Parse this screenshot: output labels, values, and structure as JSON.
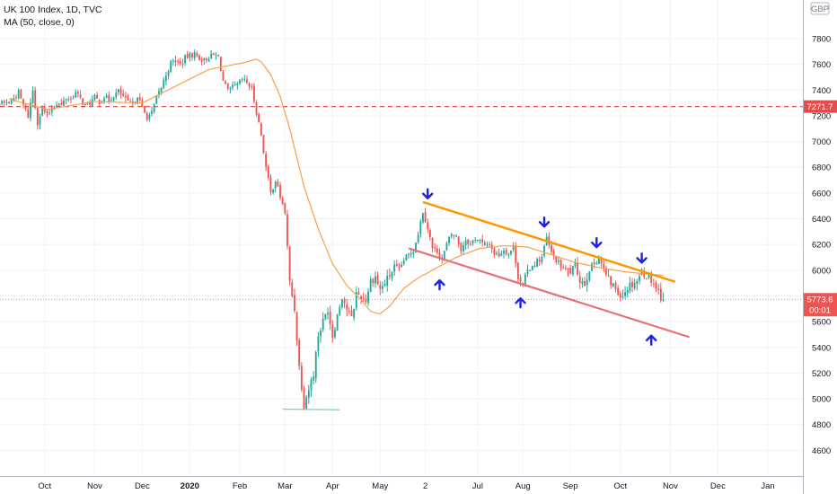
{
  "legend": {
    "title": "UK 100 Index, 1D, TVC",
    "ma": "MA (50, close, 0)"
  },
  "currency_badge": "GBP",
  "price_tags": {
    "resistance_level": "7271.7",
    "last_price": "5773.6",
    "countdown": "00:01"
  },
  "colors": {
    "up": "#26a69a",
    "down": "#ef5350",
    "ma": "#f7a04b",
    "upper_trend": "#ff9800",
    "lower_trend": "#e57373",
    "arrow": "#1e22e0",
    "support": "#80cbc4",
    "resistance_dash": "#e24d4d"
  },
  "chart_data": {
    "type": "candlestick",
    "symbol": "UK 100 Index",
    "interval": "1D",
    "source": "TVC",
    "ylim": [
      4400,
      8100
    ],
    "y_ticks": [
      4600,
      4800,
      5000,
      5200,
      5400,
      5600,
      5800,
      6000,
      6200,
      6400,
      6600,
      6800,
      7000,
      7200,
      7400,
      7600,
      7800
    ],
    "x_labels": [
      {
        "label": "Oct",
        "day": 29
      },
      {
        "label": "Nov",
        "day": 50
      },
      {
        "label": "Dec",
        "day": 70
      },
      {
        "label": "2020",
        "day": 90,
        "bold": true
      },
      {
        "label": "Feb",
        "day": 111
      },
      {
        "label": "Mar",
        "day": 130
      },
      {
        "label": "Apr",
        "day": 150
      },
      {
        "label": "May",
        "day": 170
      },
      {
        "label": "2",
        "day": 189
      },
      {
        "label": "Jul",
        "day": 211
      },
      {
        "label": "Aug",
        "day": 230
      },
      {
        "label": "Sep",
        "day": 250
      },
      {
        "label": "Oct",
        "day": 271
      },
      {
        "label": "Nov",
        "day": 292
      },
      {
        "label": "Dec",
        "day": 312
      },
      {
        "label": "Jan",
        "day": 333
      }
    ],
    "price_anchors": [
      [
        14,
        7300
      ],
      [
        16,
        7340
      ],
      [
        18,
        7380
      ],
      [
        20,
        7280
      ],
      [
        22,
        7200
      ],
      [
        24,
        7400
      ],
      [
        26,
        7150
      ],
      [
        28,
        7260
      ],
      [
        30,
        7200
      ],
      [
        32,
        7260
      ],
      [
        34,
        7300
      ],
      [
        36,
        7280
      ],
      [
        38,
        7340
      ],
      [
        40,
        7330
      ],
      [
        42,
        7380
      ],
      [
        44,
        7330
      ],
      [
        46,
        7280
      ],
      [
        48,
        7300
      ],
      [
        50,
        7340
      ],
      [
        52,
        7310
      ],
      [
        54,
        7350
      ],
      [
        56,
        7320
      ],
      [
        58,
        7360
      ],
      [
        60,
        7390
      ],
      [
        62,
        7350
      ],
      [
        64,
        7300
      ],
      [
        66,
        7290
      ],
      [
        68,
        7360
      ],
      [
        70,
        7260
      ],
      [
        72,
        7190
      ],
      [
        74,
        7220
      ],
      [
        76,
        7340
      ],
      [
        78,
        7420
      ],
      [
        80,
        7520
      ],
      [
        82,
        7610
      ],
      [
        84,
        7630
      ],
      [
        86,
        7600
      ],
      [
        88,
        7650
      ],
      [
        90,
        7670
      ],
      [
        92,
        7680
      ],
      [
        94,
        7650
      ],
      [
        96,
        7630
      ],
      [
        98,
        7660
      ],
      [
        100,
        7670
      ],
      [
        102,
        7660
      ],
      [
        104,
        7470
      ],
      [
        106,
        7390
      ],
      [
        108,
        7420
      ],
      [
        110,
        7440
      ],
      [
        112,
        7480
      ],
      [
        114,
        7460
      ],
      [
        116,
        7410
      ],
      [
        118,
        7230
      ],
      [
        120,
        7050
      ],
      [
        122,
        6800
      ],
      [
        124,
        6600
      ],
      [
        126,
        6700
      ],
      [
        128,
        6570
      ],
      [
        130,
        6450
      ],
      [
        132,
        5900
      ],
      [
        134,
        5700
      ],
      [
        136,
        5250
      ],
      [
        138,
        4960
      ],
      [
        140,
        5080
      ],
      [
        142,
        5200
      ],
      [
        144,
        5500
      ],
      [
        146,
        5600
      ],
      [
        148,
        5700
      ],
      [
        150,
        5490
      ],
      [
        152,
        5650
      ],
      [
        154,
        5800
      ],
      [
        156,
        5700
      ],
      [
        158,
        5620
      ],
      [
        160,
        5820
      ],
      [
        162,
        5800
      ],
      [
        164,
        5770
      ],
      [
        166,
        5920
      ],
      [
        168,
        5950
      ],
      [
        170,
        5850
      ],
      [
        172,
        5900
      ],
      [
        174,
        5960
      ],
      [
        176,
        6030
      ],
      [
        178,
        6000
      ],
      [
        180,
        6080
      ],
      [
        182,
        6120
      ],
      [
        184,
        6160
      ],
      [
        186,
        6290
      ],
      [
        188,
        6460
      ],
      [
        190,
        6330
      ],
      [
        192,
        6170
      ],
      [
        194,
        6150
      ],
      [
        196,
        6080
      ],
      [
        198,
        6200
      ],
      [
        200,
        6280
      ],
      [
        202,
        6260
      ],
      [
        204,
        6160
      ],
      [
        206,
        6240
      ],
      [
        208,
        6200
      ],
      [
        210,
        6250
      ],
      [
        212,
        6230
      ],
      [
        214,
        6180
      ],
      [
        216,
        6210
      ],
      [
        218,
        6130
      ],
      [
        220,
        6120
      ],
      [
        222,
        6160
      ],
      [
        224,
        6130
      ],
      [
        226,
        6180
      ],
      [
        228,
        5960
      ],
      [
        230,
        5880
      ],
      [
        232,
        5990
      ],
      [
        234,
        6040
      ],
      [
        236,
        6070
      ],
      [
        238,
        6100
      ],
      [
        240,
        6250
      ],
      [
        242,
        6130
      ],
      [
        244,
        6080
      ],
      [
        246,
        6030
      ],
      [
        248,
        6000
      ],
      [
        250,
        5990
      ],
      [
        252,
        6040
      ],
      [
        254,
        5930
      ],
      [
        256,
        5900
      ],
      [
        258,
        6010
      ],
      [
        260,
        6050
      ],
      [
        262,
        6100
      ],
      [
        264,
        6000
      ],
      [
        266,
        5920
      ],
      [
        268,
        5880
      ],
      [
        270,
        5830
      ],
      [
        272,
        5810
      ],
      [
        274,
        5870
      ],
      [
        276,
        5900
      ],
      [
        278,
        5920
      ],
      [
        280,
        5990
      ],
      [
        282,
        5960
      ],
      [
        284,
        5930
      ],
      [
        286,
        5870
      ],
      [
        288,
        5800
      ],
      [
        289,
        5773.6
      ]
    ],
    "ma_anchors": [
      [
        14,
        7330
      ],
      [
        30,
        7250
      ],
      [
        50,
        7310
      ],
      [
        70,
        7300
      ],
      [
        84,
        7430
      ],
      [
        98,
        7560
      ],
      [
        112,
        7610
      ],
      [
        118,
        7640
      ],
      [
        120,
        7620
      ],
      [
        124,
        7520
      ],
      [
        128,
        7350
      ],
      [
        132,
        7100
      ],
      [
        138,
        6650
      ],
      [
        144,
        6320
      ],
      [
        150,
        6050
      ],
      [
        156,
        5880
      ],
      [
        162,
        5770
      ],
      [
        166,
        5680
      ],
      [
        170,
        5660
      ],
      [
        174,
        5720
      ],
      [
        180,
        5860
      ],
      [
        186,
        5940
      ],
      [
        194,
        6020
      ],
      [
        202,
        6100
      ],
      [
        212,
        6170
      ],
      [
        222,
        6190
      ],
      [
        232,
        6180
      ],
      [
        242,
        6120
      ],
      [
        252,
        6060
      ],
      [
        262,
        6020
      ],
      [
        272,
        5990
      ],
      [
        282,
        5970
      ],
      [
        289,
        5960
      ]
    ],
    "annotations": {
      "resistance_level": 7271.7,
      "last_price": 5773.6,
      "upper_trendline": {
        "from": [
          188,
          6530
        ],
        "to": [
          294,
          5910
        ]
      },
      "lower_trendline": {
        "from": [
          182,
          6170
        ],
        "to": [
          300,
          5480
        ]
      },
      "support_line": {
        "from": [
          129,
          4920
        ],
        "to": [
          153,
          4915
        ]
      },
      "arrows": [
        {
          "day": 190,
          "price": 6580,
          "dir": "down"
        },
        {
          "day": 195,
          "price": 5900,
          "dir": "up"
        },
        {
          "day": 229,
          "price": 5760,
          "dir": "up"
        },
        {
          "day": 239,
          "price": 6360,
          "dir": "down"
        },
        {
          "day": 261,
          "price": 6200,
          "dir": "down"
        },
        {
          "day": 280,
          "price": 6080,
          "dir": "down"
        },
        {
          "day": 284,
          "price": 5470,
          "dir": "up"
        }
      ]
    }
  }
}
